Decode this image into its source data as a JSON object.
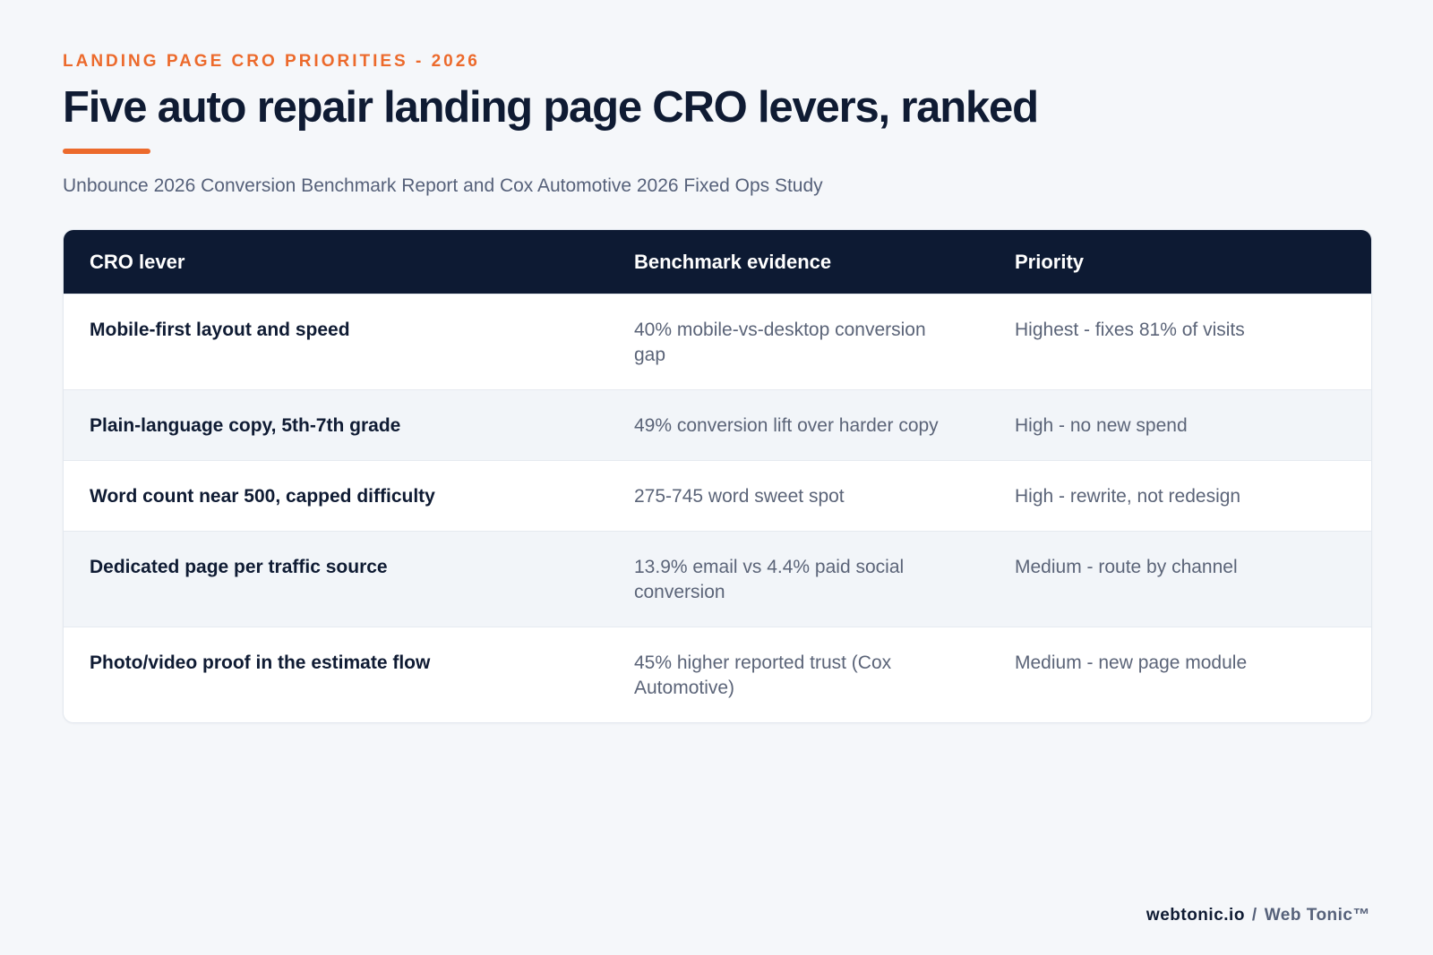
{
  "header": {
    "eyebrow": "LANDING PAGE CRO PRIORITIES - 2026",
    "title": "Five auto repair landing page CRO levers, ranked",
    "subtitle": "Unbounce 2026 Conversion Benchmark Report and Cox Automotive 2026 Fixed Ops Study"
  },
  "table": {
    "headers": [
      "CRO lever",
      "Benchmark evidence",
      "Priority"
    ],
    "rows": [
      {
        "lever": "Mobile-first layout and speed",
        "evidence": "40% mobile-vs-desktop conversion gap",
        "priority": "Highest - fixes 81% of visits"
      },
      {
        "lever": "Plain-language copy, 5th-7th grade",
        "evidence": "49% conversion lift over harder copy",
        "priority": "High - no new spend"
      },
      {
        "lever": "Word count near 500, capped difficulty",
        "evidence": "275-745 word sweet spot",
        "priority": "High - rewrite, not redesign"
      },
      {
        "lever": "Dedicated page per traffic source",
        "evidence": "13.9% email vs 4.4% paid social conversion",
        "priority": "Medium - route by channel"
      },
      {
        "lever": "Photo/video proof in the estimate flow",
        "evidence": "45% higher reported trust (Cox Automotive)",
        "priority": "Medium - new page module"
      }
    ]
  },
  "footer": {
    "domain": "webtonic.io",
    "separator": "/",
    "brand": "Web Tonic™"
  },
  "colors": {
    "accent": "#ec6a2c",
    "header_bg": "#0d1a33",
    "page_bg": "#f5f7fa"
  }
}
